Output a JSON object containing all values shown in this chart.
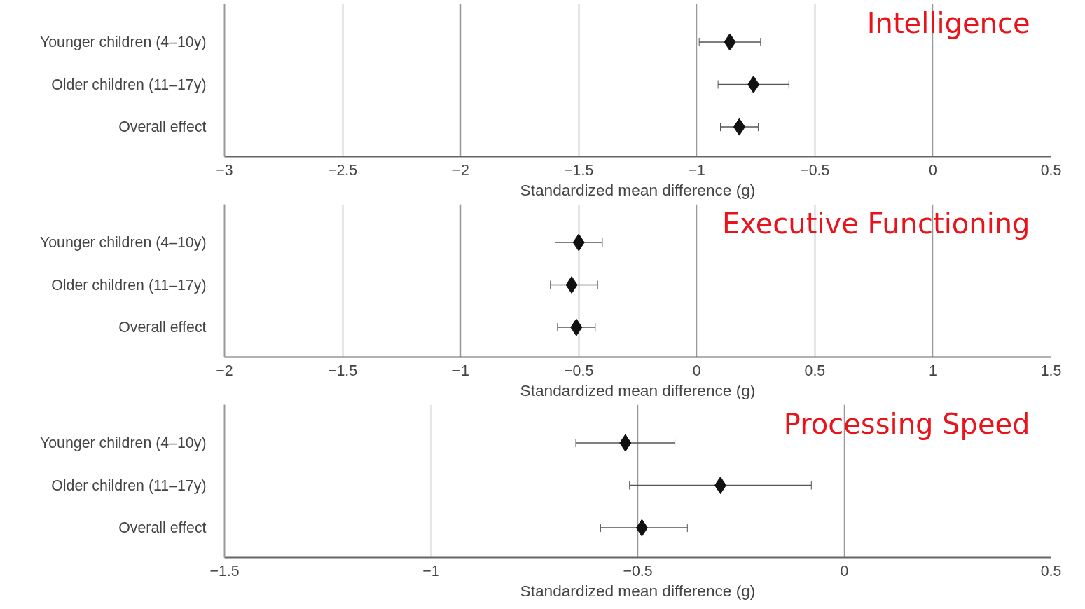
{
  "chart_data": [
    {
      "type": "scatter",
      "orientation": "horizontal",
      "title": "Intelligence",
      "xlabel": "Standardized mean difference (g)",
      "categories": [
        "Younger children (4–10y)",
        "Older children (11–17y)",
        "Overall effect"
      ],
      "values": [
        -0.86,
        -0.76,
        -0.82
      ],
      "errors": [
        [
          -0.99,
          -0.73
        ],
        [
          -0.91,
          -0.61
        ],
        [
          -0.9,
          -0.74
        ]
      ],
      "color": "#111111",
      "marker": "diamond",
      "grid": "x",
      "xlim": [
        -3,
        0.5
      ],
      "xticks": [
        {
          "value": -3,
          "label": "−3"
        },
        {
          "value": -2.5,
          "label": "−2.5"
        },
        {
          "value": -2,
          "label": "−2"
        },
        {
          "value": -1.5,
          "label": "−1.5"
        },
        {
          "value": -1,
          "label": "−1"
        },
        {
          "value": -0.5,
          "label": "−0.5"
        },
        0,
        0.5
      ]
    },
    {
      "type": "scatter",
      "orientation": "horizontal",
      "title": "Executive Functioning",
      "xlabel": "Standardized mean difference (g)",
      "categories": [
        "Younger children (4–10y)",
        "Older children (11–17y)",
        "Overall effect"
      ],
      "values": [
        -0.5,
        -0.53,
        -0.51
      ],
      "errors": [
        [
          -0.6,
          -0.4
        ],
        [
          -0.62,
          -0.42
        ],
        [
          -0.59,
          -0.43
        ]
      ],
      "color": "#111111",
      "marker": "diamond",
      "grid": "x",
      "xlim": [
        -2,
        1.5
      ],
      "xticks": [
        {
          "value": -2,
          "label": "−2"
        },
        {
          "value": -1.5,
          "label": "−1.5"
        },
        {
          "value": -1,
          "label": "−1"
        },
        {
          "value": -0.5,
          "label": "−0.5"
        },
        0,
        0.5,
        1,
        1.5
      ]
    },
    {
      "type": "scatter",
      "orientation": "horizontal",
      "title": "Processing Speed",
      "xlabel": "Standardized mean difference (g)",
      "categories": [
        "Younger children (4–10y)",
        "Older children (11–17y)",
        "Overall effect"
      ],
      "values": [
        -0.53,
        -0.3,
        -0.49
      ],
      "errors": [
        [
          -0.65,
          -0.41
        ],
        [
          -0.52,
          -0.08
        ],
        [
          -0.59,
          -0.38
        ]
      ],
      "color": "#111111",
      "marker": "diamond",
      "grid": "x",
      "xlim": [
        -1.5,
        0.5
      ],
      "xticks": [
        {
          "value": -1.5,
          "label": "−1.5"
        },
        {
          "value": -1,
          "label": "−1"
        },
        {
          "value": -0.5,
          "label": "−0.5"
        },
        0,
        0.5
      ]
    }
  ]
}
